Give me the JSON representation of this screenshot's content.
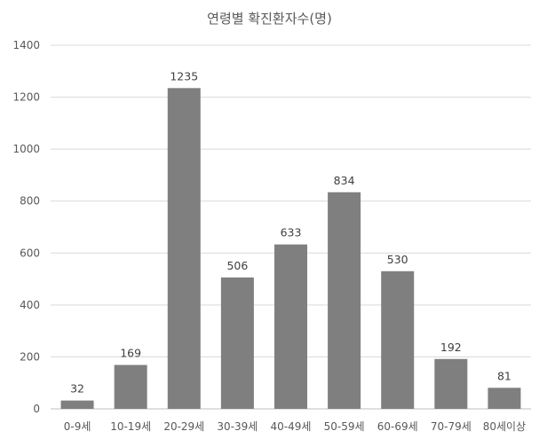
{
  "chart_data": {
    "type": "bar",
    "title": "연령별 확진환자수(명)",
    "categories": [
      "0-9세",
      "10-19세",
      "20-29세",
      "30-39세",
      "40-49세",
      "50-59세",
      "60-69세",
      "70-79세",
      "80세이상"
    ],
    "values": [
      32,
      169,
      1235,
      506,
      633,
      834,
      530,
      192,
      81
    ],
    "ylim": [
      0,
      1400
    ],
    "yticks": [
      0,
      200,
      400,
      600,
      800,
      1000,
      1200,
      1400
    ],
    "xlabel": "",
    "ylabel": "",
    "grid": true,
    "legend": "none",
    "colors": {
      "bar": "#7f7f7f",
      "grid": "#d9d9d9",
      "axis": "#bfbfbf"
    }
  }
}
